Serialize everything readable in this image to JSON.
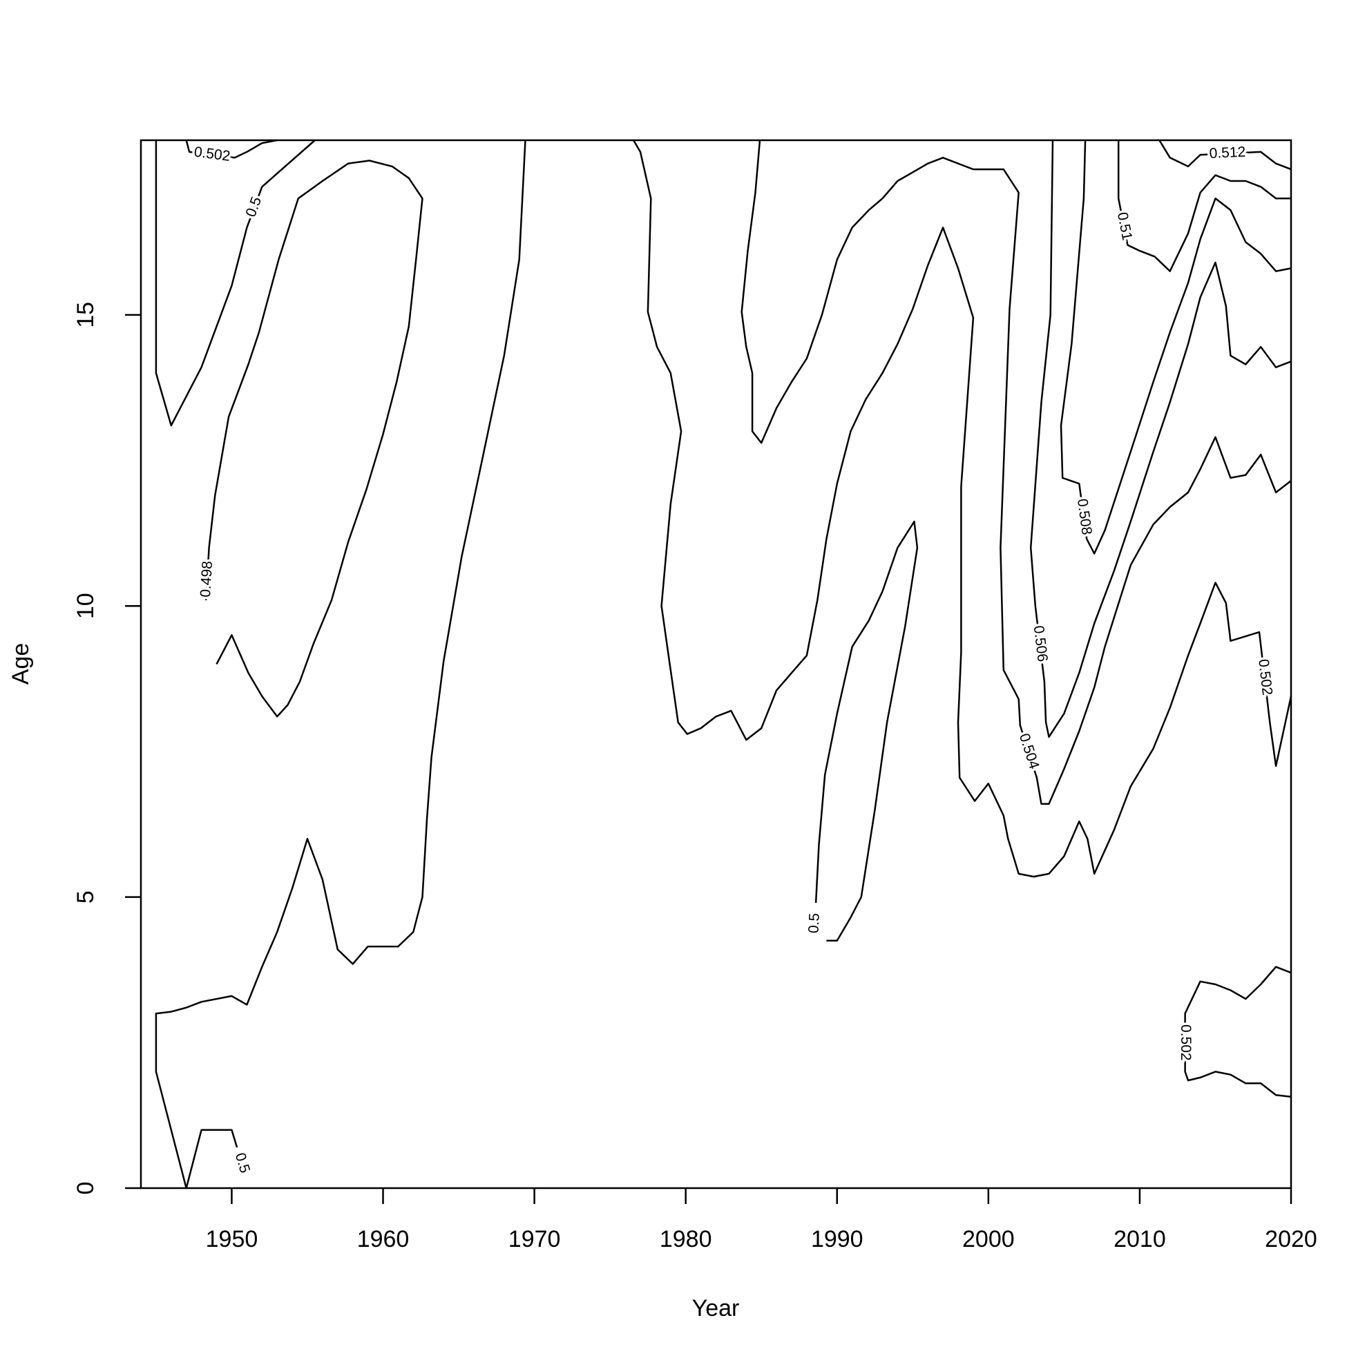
{
  "chart_data": {
    "type": "contour",
    "xlabel": "Year",
    "ylabel": "Age",
    "color": "#000000",
    "xlim": [
      1944,
      2020
    ],
    "ylim": [
      0,
      18
    ],
    "xticks": [
      1950,
      1960,
      1970,
      1980,
      1990,
      2000,
      2010,
      2020
    ],
    "yticks": [
      0,
      5,
      10,
      15
    ],
    "contours": [
      {
        "level": 0.502,
        "x": [
          1947,
          1947.2,
          1950.2,
          1951,
          1952,
          1953
        ],
        "y": [
          18,
          17.8,
          17.7,
          17.8,
          17.95,
          18
        ]
      },
      {
        "level": 0.5,
        "x": [
          1945,
          1945,
          1946,
          1947,
          1948,
          1949,
          1950,
          1951,
          1952,
          1955.5
        ],
        "y": [
          18,
          14,
          13.1,
          13.6,
          14.1,
          14.8,
          15.5,
          16.5,
          17.2,
          18
        ]
      },
      {
        "level": 0.498,
        "x": [
          1948.3,
          1948.5,
          1948.9,
          1949.4,
          1949.8,
          1951.1,
          1951.8,
          1953.1,
          1954.4,
          1956,
          1957.7,
          1959.1,
          1960.6,
          1961.7,
          1962.6,
          1962.2,
          1961.7,
          1960.9,
          1960,
          1958.9,
          1957.7,
          1956.6,
          1955.4,
          1954.5,
          1953.7,
          1953,
          1952,
          1951.1,
          1950,
          1949
        ],
        "y": [
          10.1,
          11,
          11.9,
          12.65,
          13.25,
          14.15,
          14.7,
          15.95,
          17,
          17.3,
          17.6,
          17.65,
          17.55,
          17.35,
          17,
          16,
          14.8,
          13.85,
          12.95,
          12,
          11.1,
          10.1,
          9.35,
          8.7,
          8.3,
          8.1,
          8.45,
          8.85,
          9.5,
          9
        ]
      },
      {
        "level": 0.5,
        "x": [
          1969.4,
          1969,
          1968,
          1966.3,
          1965.2,
          1964,
          1963.2,
          1962.9,
          1962.6,
          1962,
          1961,
          1960,
          1959,
          1958,
          1957,
          1956,
          1955,
          1954,
          1953,
          1952,
          1951,
          1950,
          1948,
          1947,
          1946,
          1945,
          1945,
          1947,
          1948,
          1950,
          1950.35
        ],
        "y": [
          18,
          15.95,
          14.3,
          12.2,
          10.85,
          9.05,
          7.4,
          6.35,
          5,
          4.4,
          4.15,
          4.15,
          4.15,
          3.85,
          4.1,
          5.3,
          6,
          5.15,
          4.4,
          3.8,
          3.15,
          3.3,
          3.2,
          3.1,
          3.03,
          3,
          2,
          0,
          1,
          1,
          0.7
        ]
      },
      {
        "level": 0.502,
        "x": [
          1976.55,
          1977,
          1977.7,
          1977.5,
          1978.1,
          1979,
          1979.7,
          1979,
          1978.4,
          1979,
          1979.5,
          1980.1,
          1981,
          1982,
          1983,
          1984,
          1985,
          1986,
          1987,
          1988,
          1988.7,
          1989.3,
          1990,
          1990.9,
          1991.9,
          1993,
          1994,
          1995,
          1996,
          1997,
          1998,
          1999,
          1998.2,
          1998.2,
          1998.2,
          1998,
          1998.1,
          1999.1,
          2000,
          2001,
          2001.3,
          2002,
          2003,
          2004,
          2005,
          2006,
          2006.55,
          2007,
          2008.3,
          2009.4,
          2010.9,
          2012,
          2013.2,
          2014,
          2015,
          2015.7,
          2016,
          2017.9,
          2018.6,
          2019,
          2020
        ],
        "y": [
          18,
          17.8,
          17,
          15.05,
          14.45,
          14,
          13,
          11.75,
          10,
          8.9,
          8,
          7.8,
          7.9,
          8.1,
          8.2,
          7.7,
          7.9,
          8.55,
          8.85,
          9.15,
          10.1,
          11.15,
          12.1,
          13,
          13.55,
          14,
          14.5,
          15.1,
          15.85,
          16.5,
          15.8,
          14.95,
          12.05,
          10.7,
          9.2,
          8,
          7.05,
          6.65,
          6.95,
          6.4,
          6,
          5.4,
          5.35,
          5.4,
          5.7,
          6.3,
          6,
          5.4,
          6.15,
          6.9,
          7.55,
          8.25,
          9.15,
          9.7,
          10.4,
          10.05,
          9.4,
          9.55,
          8,
          7.25,
          8.45
        ]
      },
      {
        "level": 0.5,
        "x": [
          1988.6,
          1988.8,
          1989.2,
          1990,
          1991,
          1992.1,
          1993,
          1994,
          1995.1,
          1995.3,
          1994.5,
          1993.3,
          1992.5,
          1991.6,
          1990.9,
          1990,
          1989.3
        ],
        "y": [
          4.9,
          5.9,
          7.1,
          8.15,
          9.3,
          9.75,
          10.25,
          11,
          11.45,
          11,
          9.65,
          8,
          6.5,
          5,
          4.65,
          4.25,
          4.25
        ]
      },
      {
        "level": 0.504,
        "x": [
          1984.9,
          1984.6,
          1984.1,
          1983.7,
          1984,
          1984.4,
          1984.4,
          1985,
          1986,
          1987,
          1988,
          1989,
          1990,
          1991,
          1992.1,
          1993,
          1994,
          1995,
          1996,
          1997,
          1998,
          1999,
          2001,
          2002,
          2001.4,
          2000.8,
          2001,
          2002,
          2002.1,
          2003.2,
          2003.5,
          2004,
          2005,
          2006,
          2007,
          2007.7,
          2009.4,
          2010.9,
          2012,
          2013.2,
          2014,
          2015,
          2016,
          2017,
          2018,
          2019,
          2020
        ],
        "y": [
          18,
          17.1,
          16.1,
          15.05,
          14.45,
          14,
          13,
          12.8,
          13.4,
          13.85,
          14.25,
          15,
          15.95,
          16.5,
          16.8,
          17,
          17.3,
          17.45,
          17.6,
          17.7,
          17.6,
          17.5,
          17.5,
          17.1,
          15.1,
          11,
          8.9,
          8.4,
          7.95,
          7.05,
          6.6,
          6.6,
          7.2,
          7.85,
          8.6,
          9.3,
          10.7,
          11.4,
          11.7,
          11.95,
          12.35,
          12.9,
          12.2,
          12.25,
          12.6,
          11.95,
          12.15
        ]
      },
      {
        "level": 0.506,
        "x": [
          2004.25,
          2004.1,
          2003.5,
          2002.8,
          2003.1,
          2003.7,
          2003.8,
          2004,
          2005,
          2006,
          2007,
          2008.3,
          2009.4,
          2010.9,
          2012,
          2013.2,
          2014,
          2015,
          2015.7,
          2016,
          2017,
          2018,
          2019,
          2020
        ],
        "y": [
          18,
          15,
          13.5,
          11,
          10,
          8.7,
          8,
          7.75,
          8.15,
          8.85,
          9.7,
          10.6,
          11.45,
          12.65,
          13.5,
          14.5,
          15.3,
          15.9,
          15.15,
          14.3,
          14.15,
          14.45,
          14.1,
          14.2
        ]
      },
      {
        "level": 0.508,
        "x": [
          2006.4,
          2006.3,
          2005.5,
          2004.8,
          2004.9,
          2006,
          2006.5,
          2007,
          2007.7,
          2009.4,
          2010.9,
          2012,
          2013.2,
          2014,
          2015,
          2016,
          2017,
          2018,
          2019,
          2020
        ],
        "y": [
          18,
          17,
          14.5,
          13.1,
          12.2,
          12.1,
          11.15,
          10.9,
          11.3,
          12.65,
          13.85,
          14.7,
          15.55,
          16.3,
          17,
          16.8,
          16.25,
          16.05,
          15.75,
          15.8
        ]
      },
      {
        "level": 0.51,
        "x": [
          2008.6,
          2008.6,
          2009.2,
          2010,
          2011,
          2012,
          2013.2,
          2014,
          2015,
          2016,
          2017,
          2018,
          2019,
          2020
        ],
        "y": [
          18,
          17,
          16.2,
          16.1,
          16,
          15.75,
          16.4,
          17.1,
          17.4,
          17.3,
          17.3,
          17.2,
          17,
          17
        ]
      },
      {
        "level": 0.512,
        "x": [
          2011.3,
          2012,
          2013.2,
          2014,
          2018,
          2019,
          2020
        ],
        "y": [
          18,
          17.7,
          17.55,
          17.75,
          17.8,
          17.6,
          17.5
        ]
      },
      {
        "level": 0.502,
        "x": [
          2020,
          2019,
          2018,
          2017,
          2016,
          2015,
          2014,
          2013,
          2013,
          2013.2,
          2014,
          2015,
          2016,
          2017,
          2018,
          2019,
          2020
        ],
        "y": [
          3.7,
          3.8,
          3.5,
          3.25,
          3.4,
          3.5,
          3.55,
          3,
          2,
          1.85,
          1.9,
          2,
          1.95,
          1.8,
          1.8,
          1.6,
          1.57
        ]
      }
    ]
  }
}
